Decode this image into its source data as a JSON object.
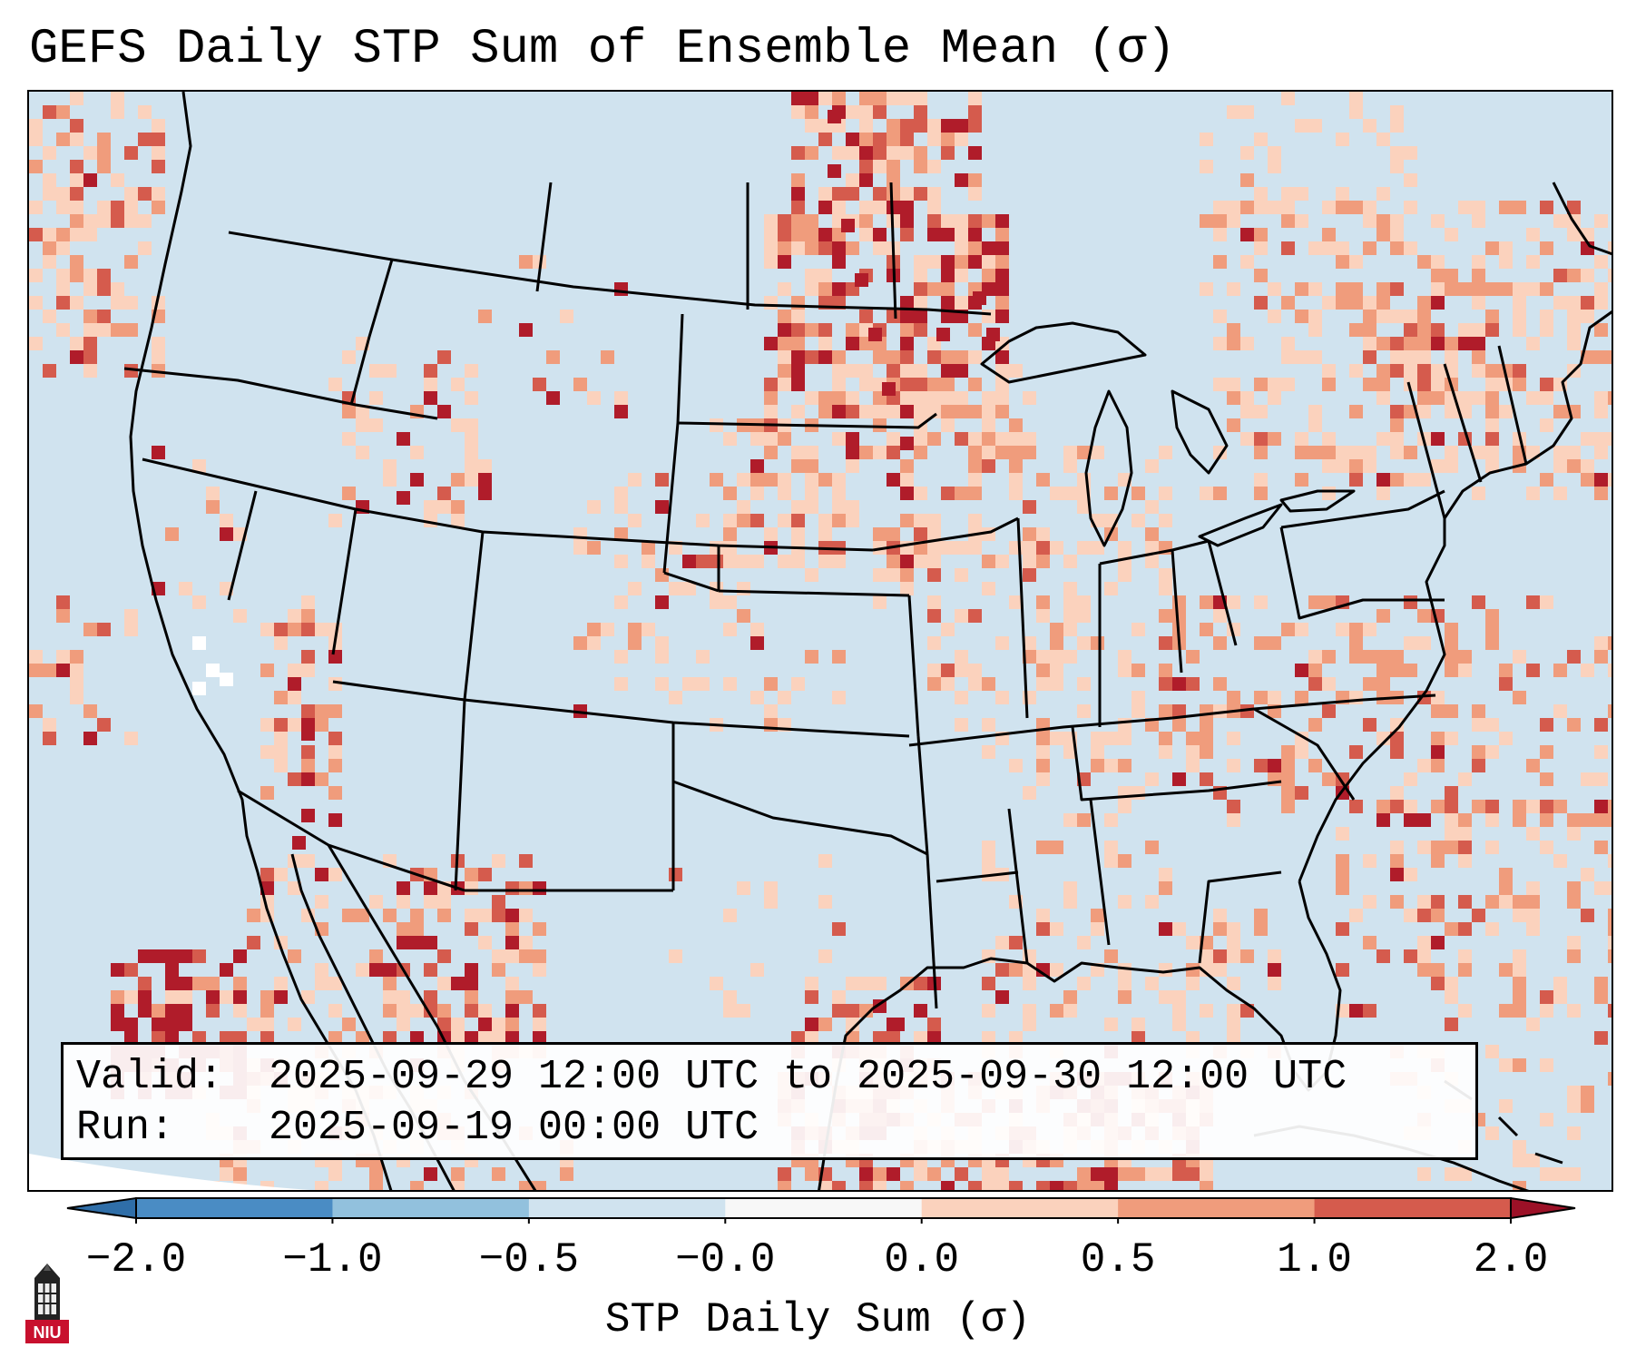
{
  "title": "GEFS Daily STP Sum of Ensemble Mean (σ)",
  "info": {
    "valid_label": "Valid:",
    "valid_value": "2025-09-29 12:00 UTC to 2025-09-30 12:00 UTC",
    "run_label": "Run:",
    "run_value": "2025-09-19 00:00 UTC"
  },
  "colorbar": {
    "label": "STP Daily Sum (σ)",
    "ticks": [
      "−2.0",
      "−1.0",
      "−0.5",
      "−0.0",
      "0.0",
      "0.5",
      "1.0",
      "2.0"
    ],
    "colors": [
      "#4a8cc4",
      "#92c1dd",
      "#d0e3ef",
      "#f7f7f7",
      "#fbd2bd",
      "#f09c7c",
      "#d55b4d",
      "#b01c2a"
    ],
    "extend_low_color": "#2f6ea8",
    "extend_high_color": "#9c1127"
  },
  "logo": {
    "text": "NIU",
    "icon": "university-tower-icon"
  },
  "map": {
    "projection": "lambert-conformal",
    "region": "CONUS",
    "background_color": "#d0e3ef",
    "border_color": "#000000"
  }
}
